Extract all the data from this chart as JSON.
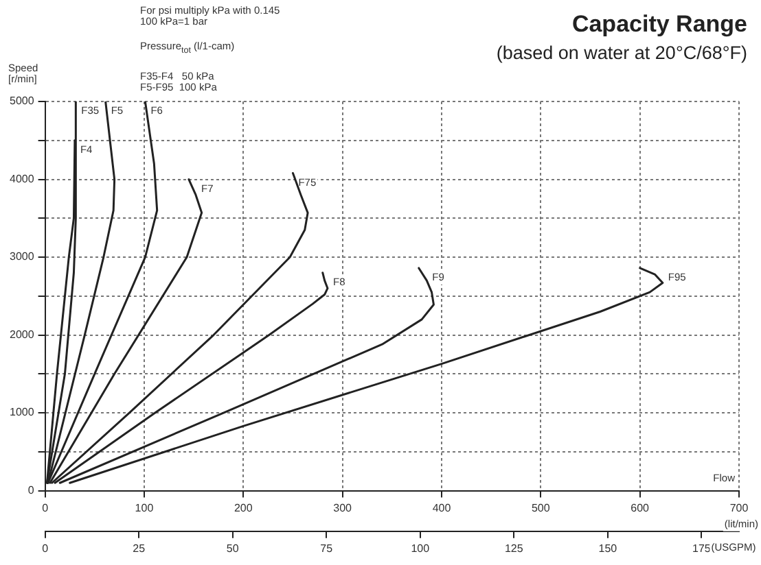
{
  "chart_data": {
    "type": "line",
    "title": "Capacity Range",
    "subtitle": "(based on water at 20°C/68°F)",
    "ylabel": "Speed [r/min]",
    "xlabel": "(lit/min)",
    "x2label": "(USGPM)",
    "annotations": [
      "For psi multiply kPa with 0.145",
      "100 kPa=1 bar",
      "Pressure$_{tot}$ (l/1-cam)",
      "F35-F4   50 kPa",
      "F5-F95  100 kPa",
      "Flow"
    ],
    "xlim": [
      0,
      700
    ],
    "xticks": [
      0,
      100,
      200,
      300,
      400,
      500,
      600,
      700
    ],
    "x2lim": [
      0,
      185
    ],
    "x2ticks": [
      0,
      25,
      50,
      75,
      100,
      125,
      150,
      175
    ],
    "ylim": [
      0,
      5000
    ],
    "yticks": [
      0,
      {
        "value": 500,
        "label": null
      },
      1000,
      {
        "value": 1500,
        "label": null
      },
      2000,
      {
        "value": 2500,
        "label": null
      },
      3000,
      {
        "value": 3500,
        "label": null
      },
      4000,
      {
        "value": 4500,
        "label": null
      },
      5000
    ],
    "grid": true,
    "legend": false,
    "marker": "none",
    "line_style": "solid",
    "series": [
      {
        "name": "F35",
        "color": "#222222",
        "x": [
          2,
          20,
          29,
          31,
          31
        ],
        "values": [
          100,
          1500,
          2800,
          3500,
          5000
        ]
      },
      {
        "name": "F4",
        "color": "#222222",
        "x": [
          2,
          12,
          24,
          29,
          30
        ],
        "values": [
          100,
          1500,
          3000,
          3500,
          4500
        ]
      },
      {
        "name": "F5",
        "color": "#222222",
        "x": [
          3,
          40,
          59,
          69,
          70,
          61
        ],
        "values": [
          100,
          2000,
          3000,
          3600,
          4000,
          5000
        ]
      },
      {
        "name": "F6",
        "color": "#222222",
        "x": [
          3,
          50,
          101,
          113,
          110,
          101
        ],
        "values": [
          100,
          1500,
          3000,
          3600,
          4200,
          5000
        ]
      },
      {
        "name": "F7",
        "color": "#222222",
        "x": [
          5,
          70,
          143,
          158,
          152,
          145
        ],
        "values": [
          100,
          1500,
          3000,
          3570,
          3800,
          4000
        ]
      },
      {
        "name": "F75",
        "color": "#222222",
        "x": [
          7,
          85,
          170,
          247,
          262,
          265,
          258,
          250
        ],
        "values": [
          100,
          1000,
          2000,
          3000,
          3350,
          3570,
          3800,
          4080
        ]
      },
      {
        "name": "F8",
        "color": "#222222",
        "x": [
          10,
          111,
          226,
          270,
          282,
          285,
          282,
          280
        ],
        "values": [
          100,
          1000,
          2000,
          2400,
          2520,
          2600,
          2700,
          2800
        ]
      },
      {
        "name": "F9",
        "color": "#222222",
        "x": [
          15,
          180,
          340,
          380,
          392,
          390,
          385,
          377
        ],
        "values": [
          100,
          1000,
          1880,
          2200,
          2390,
          2550,
          2700,
          2860
        ]
      },
      {
        "name": "F95",
        "color": "#222222",
        "x": [
          25,
          200,
          400,
          560,
          610,
          623,
          615,
          600
        ],
        "values": [
          100,
          830,
          1630,
          2300,
          2550,
          2670,
          2780,
          2860
        ]
      }
    ]
  }
}
